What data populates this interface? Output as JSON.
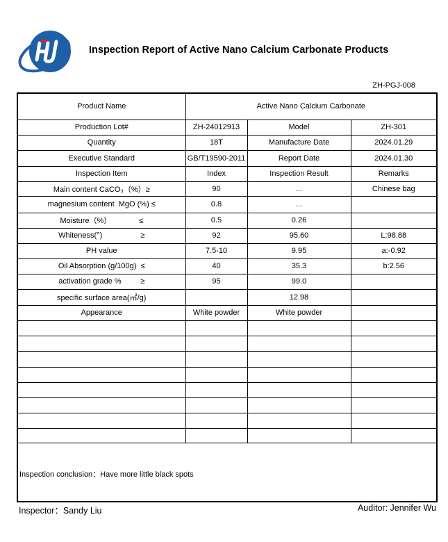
{
  "header": {
    "title": "Inspection Report of Active Nano Calcium Carbonate Products",
    "document_code": "ZH-PGJ-008"
  },
  "table": {
    "product_name_label": "Product Name",
    "product_name": "Active Nano Calcium Carbonate",
    "rows": [
      [
        "Production Lot#",
        "ZH-24012913",
        "Model",
        "ZH-301"
      ],
      [
        "Quantity",
        "18T",
        "Manufacture Date",
        "2024.01.29"
      ],
      [
        "Executive Standard",
        "GB/T19590-2011",
        "Report Date",
        "2024.01.30"
      ],
      [
        "Inspection Item",
        "Index",
        "Inspection Result",
        "Remarks"
      ],
      [
        "Main content CaCO₃（%）≥",
        "90",
        "...",
        "Chinese bag"
      ],
      [
        "magnesium content  MgO (%) ≤",
        "0.8",
        "...",
        null
      ],
      [
        "Moisture（%）             ≤",
        "0.5",
        "0.26",
        null
      ],
      [
        "Whiteness(°)                  ≥",
        "92",
        "95.60",
        "L:98.88"
      ],
      [
        "PH value",
        "7.5-10",
        "9.95",
        "a:-0.92"
      ],
      [
        "Oil Absorption (g/100g)  ≤",
        "40",
        "35.3",
        "b:2.56"
      ],
      [
        "activation grade %         ≥",
        "95",
        "99.0",
        null
      ],
      [
        "specific surface area(㎡/g)",
        null,
        "12.98",
        null
      ],
      [
        "Appearance",
        "White powder",
        "White powder",
        null
      ]
    ],
    "conclusion": "Inspection conclusion：Have more little black spots"
  },
  "footer": {
    "inspector": "Inspector：Sandy Liu",
    "auditor": "Auditor: Jennifer Wu"
  }
}
